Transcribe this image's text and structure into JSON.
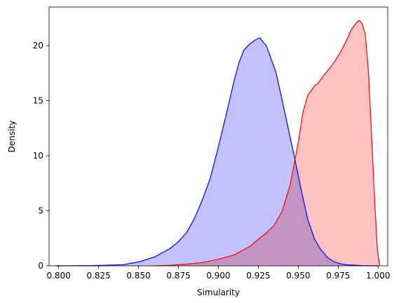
{
  "chart_data": {
    "type": "area",
    "title": "",
    "xlabel": "Simularity",
    "ylabel": "Density",
    "xlim": [
      0.794,
      1.006
    ],
    "ylim": [
      0,
      23.5
    ],
    "x_ticks": [
      "0.800",
      "0.825",
      "0.850",
      "0.875",
      "0.900",
      "0.925",
      "0.950",
      "0.975",
      "1.000"
    ],
    "y_ticks": [
      "0",
      "5",
      "10",
      "15",
      "20"
    ],
    "grid": false,
    "legend": "none",
    "series": [
      {
        "color": "#0000ff",
        "fill": "#bfbfff",
        "x": [
          0.798,
          0.82,
          0.84,
          0.85,
          0.86,
          0.87,
          0.875,
          0.88,
          0.885,
          0.89,
          0.895,
          0.9,
          0.905,
          0.91,
          0.913,
          0.916,
          0.92,
          0.923,
          0.926,
          0.928,
          0.93,
          0.933,
          0.936,
          0.94,
          0.944,
          0.948,
          0.952,
          0.956,
          0.96,
          0.964,
          0.968,
          0.972,
          0.976,
          0.98,
          0.99,
          1.0
        ],
        "y": [
          0.0,
          0.02,
          0.1,
          0.35,
          0.8,
          1.6,
          2.2,
          3.0,
          4.3,
          6.0,
          8.0,
          10.8,
          13.8,
          16.9,
          18.5,
          19.6,
          20.2,
          20.5,
          20.7,
          20.3,
          20.0,
          18.8,
          17.6,
          15.0,
          12.3,
          9.6,
          6.8,
          4.2,
          2.5,
          1.5,
          0.8,
          0.4,
          0.2,
          0.1,
          0.02,
          0.0
        ]
      },
      {
        "color": "#ff0000",
        "fill": "#ffbfbf",
        "x": [
          0.86,
          0.87,
          0.88,
          0.89,
          0.9,
          0.91,
          0.92,
          0.93,
          0.935,
          0.94,
          0.945,
          0.95,
          0.953,
          0.956,
          0.96,
          0.963,
          0.966,
          0.97,
          0.973,
          0.976,
          0.98,
          0.983,
          0.986,
          0.988,
          0.99,
          0.992,
          0.994,
          0.996,
          0.998,
          0.9995,
          1.001
        ],
        "y": [
          0.0,
          0.05,
          0.15,
          0.3,
          0.6,
          1.0,
          1.8,
          3.0,
          3.7,
          5.0,
          7.4,
          11.2,
          14.0,
          15.5,
          16.3,
          16.7,
          17.3,
          18.0,
          18.6,
          19.3,
          20.4,
          21.4,
          22.0,
          22.3,
          22.0,
          21.0,
          17.5,
          11.5,
          5.5,
          1.5,
          0.0
        ]
      }
    ]
  }
}
